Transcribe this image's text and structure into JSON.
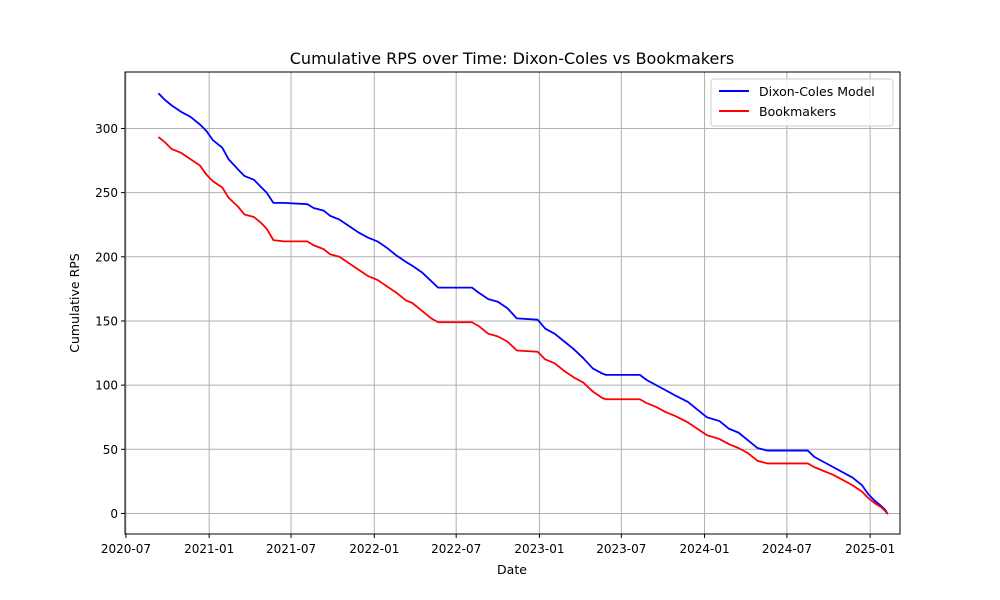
{
  "chart_data": {
    "type": "line",
    "title": "Cumulative RPS over Time: Dixon-Coles vs Bookmakers",
    "xlabel": "Date",
    "ylabel": "Cumulative RPS",
    "xlim": [
      "2020-06-29",
      "2025-03-08"
    ],
    "ylim": [
      -16,
      344
    ],
    "x_ticks": [
      "2020-07",
      "2021-01",
      "2021-07",
      "2022-01",
      "2022-07",
      "2023-01",
      "2023-07",
      "2024-01",
      "2024-07",
      "2025-01"
    ],
    "y_ticks": [
      0,
      50,
      100,
      150,
      200,
      250,
      300
    ],
    "grid": true,
    "legend_position": "upper-right",
    "series": [
      {
        "name": "Dixon-Coles Model",
        "color": "#0000ff",
        "points": [
          [
            "2020-09-12",
            327
          ],
          [
            "2020-09-26",
            322
          ],
          [
            "2020-10-10",
            318
          ],
          [
            "2020-10-31",
            313
          ],
          [
            "2020-11-21",
            309
          ],
          [
            "2020-12-12",
            303
          ],
          [
            "2020-12-26",
            298
          ],
          [
            "2021-01-09",
            291
          ],
          [
            "2021-01-30",
            285
          ],
          [
            "2021-02-13",
            276
          ],
          [
            "2021-03-06",
            268
          ],
          [
            "2021-03-20",
            263
          ],
          [
            "2021-04-10",
            260
          ],
          [
            "2021-04-24",
            255
          ],
          [
            "2021-05-08",
            250
          ],
          [
            "2021-05-23",
            242
          ],
          [
            "2021-06-15",
            242
          ],
          [
            "2021-08-06",
            241
          ],
          [
            "2021-08-20",
            238
          ],
          [
            "2021-09-11",
            236
          ],
          [
            "2021-09-25",
            232
          ],
          [
            "2021-10-16",
            229
          ],
          [
            "2021-11-06",
            224
          ],
          [
            "2021-11-27",
            219
          ],
          [
            "2021-12-18",
            215
          ],
          [
            "2022-01-08",
            212
          ],
          [
            "2022-01-29",
            207
          ],
          [
            "2022-02-19",
            201
          ],
          [
            "2022-03-12",
            196
          ],
          [
            "2022-03-26",
            193
          ],
          [
            "2022-04-16",
            188
          ],
          [
            "2022-05-07",
            181
          ],
          [
            "2022-05-22",
            176
          ],
          [
            "2022-08-05",
            176
          ],
          [
            "2022-08-20",
            172
          ],
          [
            "2022-09-10",
            167
          ],
          [
            "2022-10-01",
            165
          ],
          [
            "2022-10-22",
            160
          ],
          [
            "2022-11-12",
            152
          ],
          [
            "2022-12-28",
            151
          ],
          [
            "2023-01-14",
            144
          ],
          [
            "2023-02-04",
            140
          ],
          [
            "2023-02-25",
            134
          ],
          [
            "2023-03-18",
            128
          ],
          [
            "2023-04-08",
            121
          ],
          [
            "2023-04-29",
            113
          ],
          [
            "2023-05-20",
            109
          ],
          [
            "2023-05-28",
            108
          ],
          [
            "2023-08-11",
            108
          ],
          [
            "2023-08-26",
            104
          ],
          [
            "2023-09-16",
            100
          ],
          [
            "2023-10-07",
            96
          ],
          [
            "2023-10-28",
            92
          ],
          [
            "2023-11-25",
            87
          ],
          [
            "2023-12-16",
            81
          ],
          [
            "2024-01-06",
            75
          ],
          [
            "2024-02-03",
            72
          ],
          [
            "2024-02-24",
            66
          ],
          [
            "2024-03-16",
            63
          ],
          [
            "2024-04-06",
            57
          ],
          [
            "2024-04-27",
            51
          ],
          [
            "2024-05-19",
            49
          ],
          [
            "2024-08-16",
            49
          ],
          [
            "2024-08-31",
            44
          ],
          [
            "2024-09-21",
            40
          ],
          [
            "2024-10-12",
            36
          ],
          [
            "2024-11-02",
            32
          ],
          [
            "2024-11-23",
            28
          ],
          [
            "2024-12-14",
            22
          ],
          [
            "2024-12-28",
            15
          ],
          [
            "2025-01-11",
            10
          ],
          [
            "2025-01-25",
            6
          ],
          [
            "2025-02-03",
            3
          ],
          [
            "2025-02-08",
            0
          ]
        ]
      },
      {
        "name": "Bookmakers",
        "color": "#ff0000",
        "points": [
          [
            "2020-09-12",
            293
          ],
          [
            "2020-09-26",
            289
          ],
          [
            "2020-10-10",
            284
          ],
          [
            "2020-10-31",
            281
          ],
          [
            "2020-11-21",
            276
          ],
          [
            "2020-12-12",
            271
          ],
          [
            "2020-12-26",
            264
          ],
          [
            "2021-01-09",
            259
          ],
          [
            "2021-01-30",
            254
          ],
          [
            "2021-02-13",
            246
          ],
          [
            "2021-03-06",
            239
          ],
          [
            "2021-03-20",
            233
          ],
          [
            "2021-04-10",
            231
          ],
          [
            "2021-04-24",
            227
          ],
          [
            "2021-05-08",
            222
          ],
          [
            "2021-05-23",
            213
          ],
          [
            "2021-06-15",
            212
          ],
          [
            "2021-08-06",
            212
          ],
          [
            "2021-08-20",
            209
          ],
          [
            "2021-09-11",
            206
          ],
          [
            "2021-09-25",
            202
          ],
          [
            "2021-10-16",
            200
          ],
          [
            "2021-11-06",
            195
          ],
          [
            "2021-11-27",
            190
          ],
          [
            "2021-12-18",
            185
          ],
          [
            "2022-01-08",
            182
          ],
          [
            "2022-01-29",
            177
          ],
          [
            "2022-02-19",
            172
          ],
          [
            "2022-03-12",
            166
          ],
          [
            "2022-03-26",
            164
          ],
          [
            "2022-04-16",
            158
          ],
          [
            "2022-05-07",
            152
          ],
          [
            "2022-05-22",
            149
          ],
          [
            "2022-08-05",
            149
          ],
          [
            "2022-08-20",
            146
          ],
          [
            "2022-09-10",
            140
          ],
          [
            "2022-10-01",
            138
          ],
          [
            "2022-10-22",
            134
          ],
          [
            "2022-11-12",
            127
          ],
          [
            "2022-12-28",
            126
          ],
          [
            "2023-01-14",
            120
          ],
          [
            "2023-02-04",
            117
          ],
          [
            "2023-02-25",
            111
          ],
          [
            "2023-03-18",
            106
          ],
          [
            "2023-04-08",
            102
          ],
          [
            "2023-04-29",
            95
          ],
          [
            "2023-05-20",
            90
          ],
          [
            "2023-05-28",
            89
          ],
          [
            "2023-08-11",
            89
          ],
          [
            "2023-08-26",
            86
          ],
          [
            "2023-09-16",
            83
          ],
          [
            "2023-10-07",
            79
          ],
          [
            "2023-10-28",
            76
          ],
          [
            "2023-11-25",
            71
          ],
          [
            "2023-12-16",
            66
          ],
          [
            "2024-01-06",
            61
          ],
          [
            "2024-02-03",
            58
          ],
          [
            "2024-02-24",
            54
          ],
          [
            "2024-03-16",
            51
          ],
          [
            "2024-04-06",
            47
          ],
          [
            "2024-04-27",
            41
          ],
          [
            "2024-05-19",
            39
          ],
          [
            "2024-08-16",
            39
          ],
          [
            "2024-08-31",
            36
          ],
          [
            "2024-09-21",
            33
          ],
          [
            "2024-10-12",
            30
          ],
          [
            "2024-11-02",
            26
          ],
          [
            "2024-11-23",
            22
          ],
          [
            "2024-12-14",
            17
          ],
          [
            "2024-12-28",
            12
          ],
          [
            "2025-01-11",
            8
          ],
          [
            "2025-01-25",
            5
          ],
          [
            "2025-02-03",
            2
          ],
          [
            "2025-02-08",
            0
          ]
        ]
      }
    ]
  }
}
